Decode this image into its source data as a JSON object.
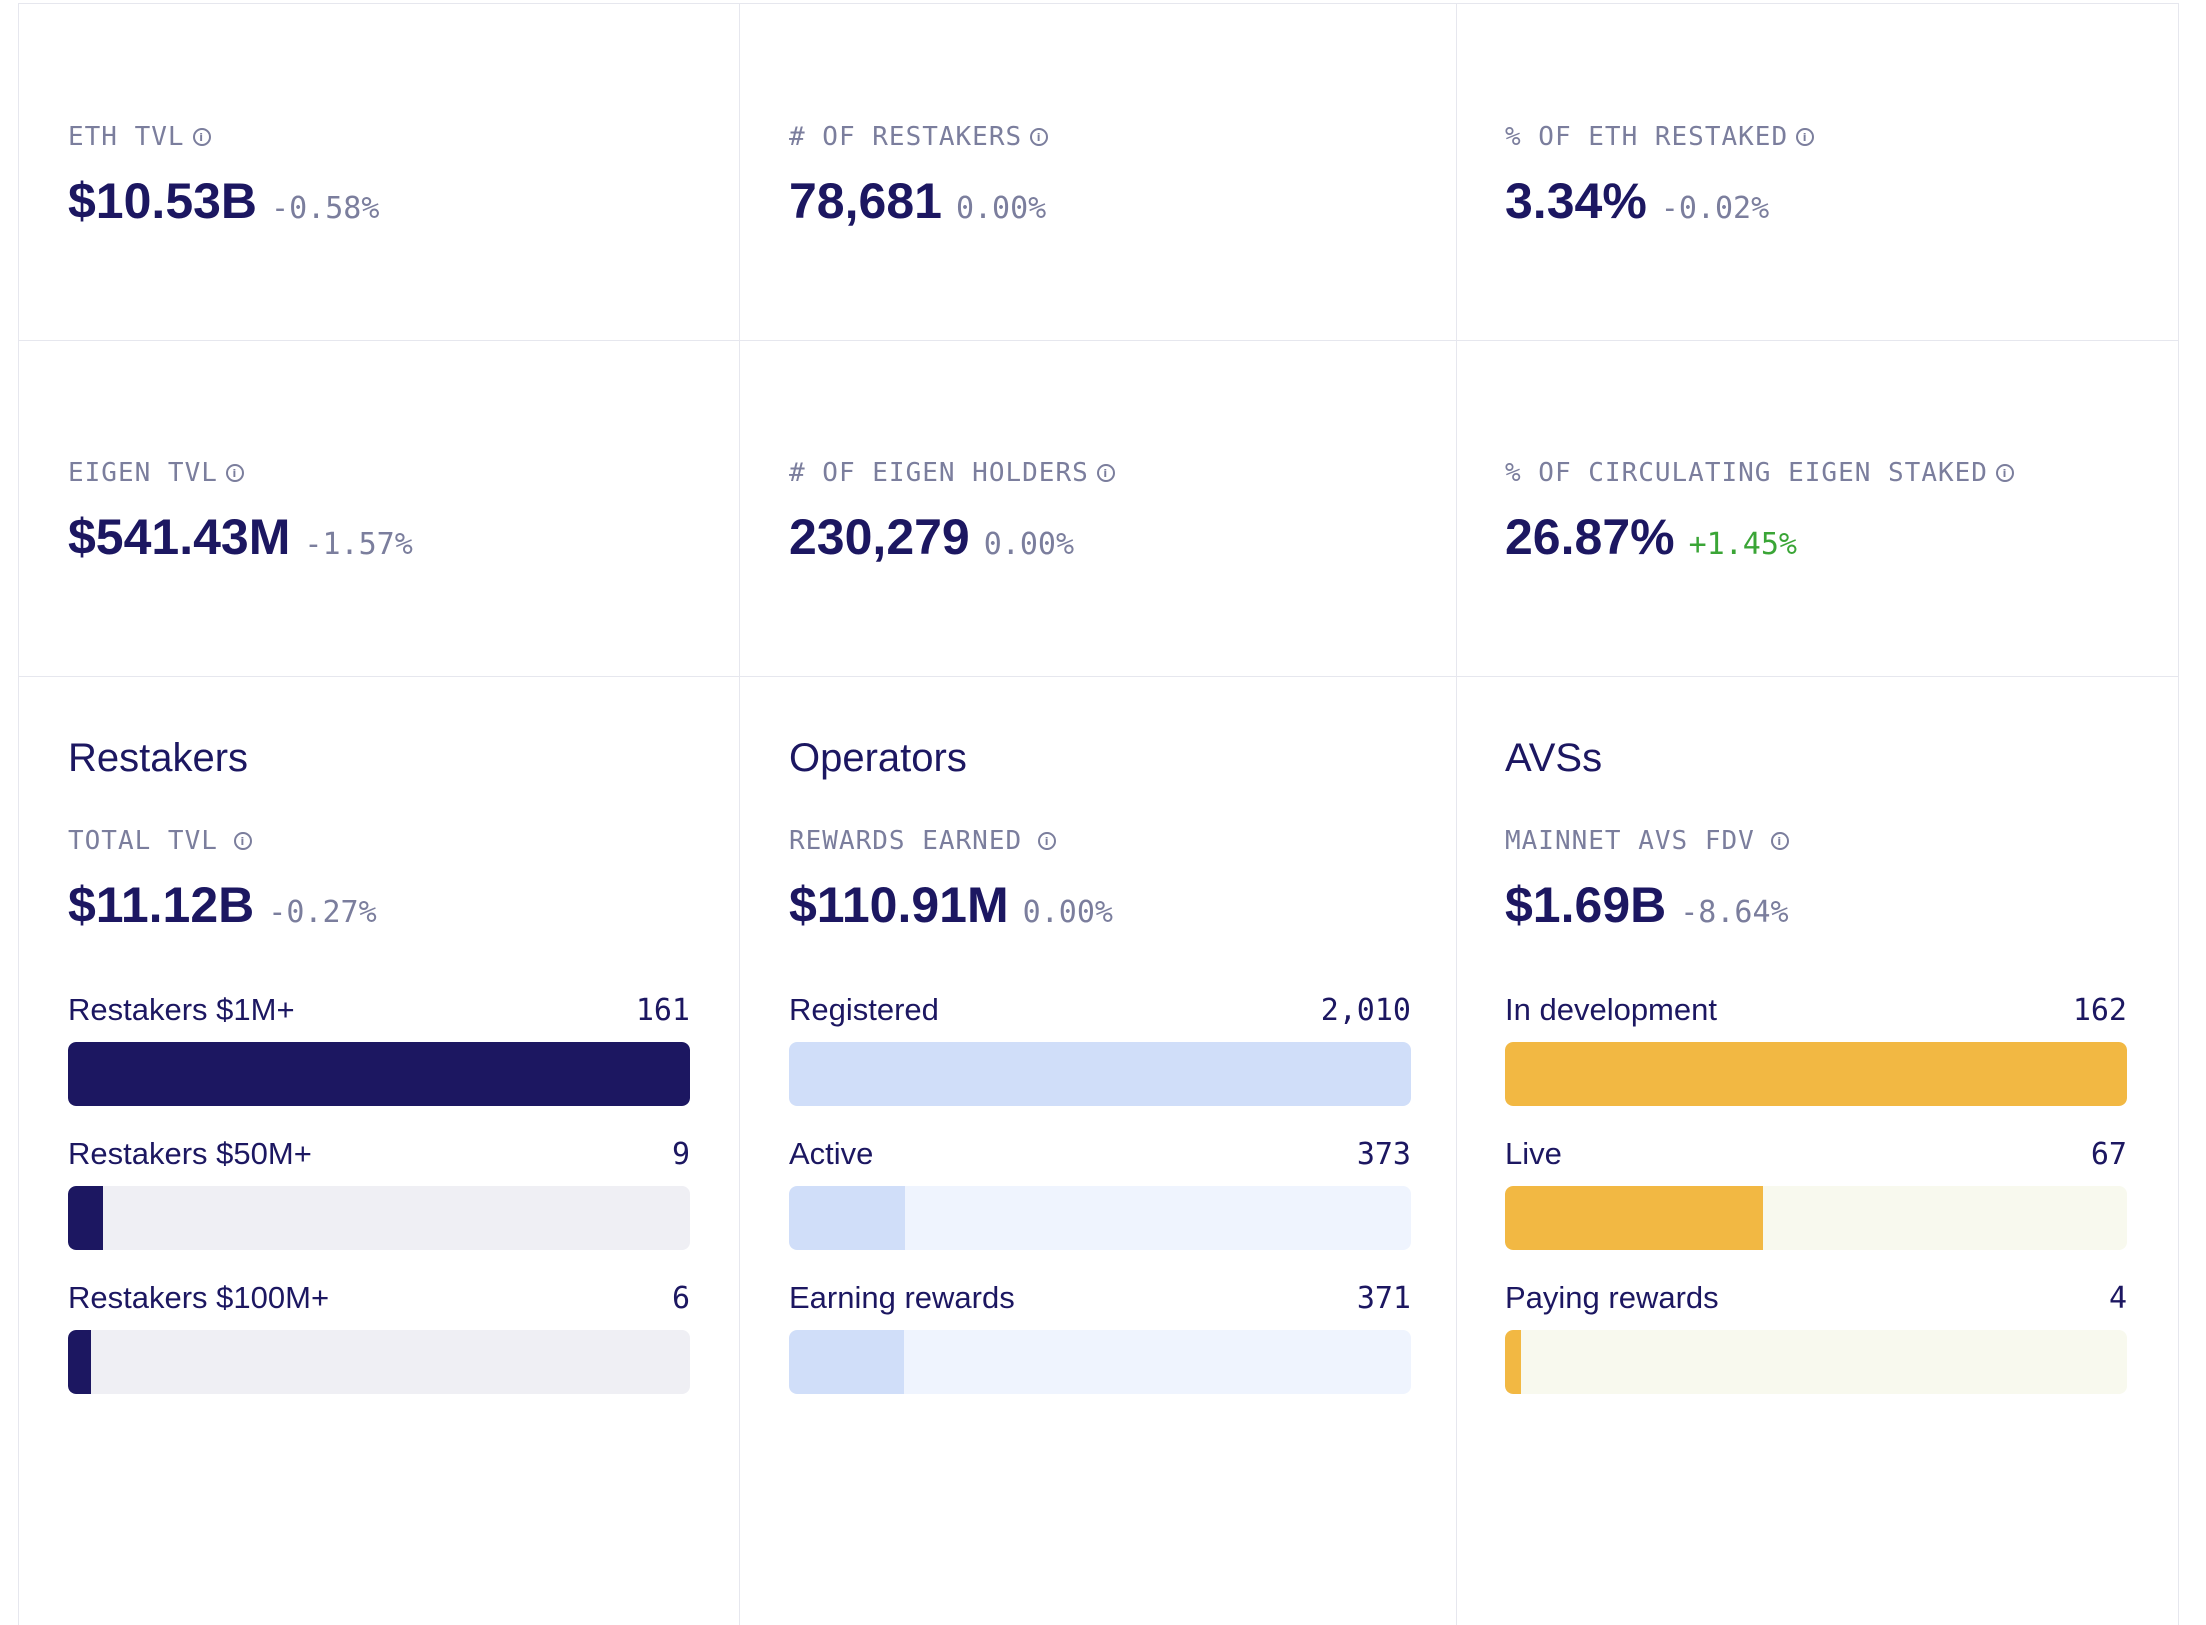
{
  "stats": [
    {
      "label": "ETH TVL",
      "value": "$10.53B",
      "delta": "-0.58%",
      "trend": "neutral"
    },
    {
      "label": "# OF RESTAKERS",
      "value": "78,681",
      "delta": "0.00%",
      "trend": "neutral"
    },
    {
      "label": "% OF ETH RESTAKED",
      "value": "3.34%",
      "delta": "-0.02%",
      "trend": "neutral"
    },
    {
      "label": "EIGEN TVL",
      "value": "$541.43M",
      "delta": "-1.57%",
      "trend": "neutral"
    },
    {
      "label": "# OF EIGEN HOLDERS",
      "value": "230,279",
      "delta": "0.00%",
      "trend": "neutral"
    },
    {
      "label": "% OF CIRCULATING EIGEN STAKED",
      "value": "26.87%",
      "delta": "+1.45%",
      "trend": "positive"
    }
  ],
  "sections": [
    {
      "title": "Restakers",
      "metric_label": "TOTAL TVL",
      "metric_value": "$11.12B",
      "metric_delta": "-0.27%",
      "bar_color": "#1c1761",
      "track_color": "#efeff4",
      "bars": [
        {
          "label": "Restakers $1M+",
          "count": "161",
          "fraction": 1.0
        },
        {
          "label": "Restakers $50M+",
          "count": "9",
          "fraction": 0.056
        },
        {
          "label": "Restakers $100M+",
          "count": "6",
          "fraction": 0.037
        }
      ]
    },
    {
      "title": "Operators",
      "metric_label": "REWARDS EARNED",
      "metric_value": "$110.91M",
      "metric_delta": "0.00%",
      "bar_color": "#d0def9",
      "track_color": "#eff4fe",
      "bars": [
        {
          "label": "Registered",
          "count": "2,010",
          "fraction": 1.0
        },
        {
          "label": "Active",
          "count": "373",
          "fraction": 0.186
        },
        {
          "label": "Earning rewards",
          "count": "371",
          "fraction": 0.185
        }
      ]
    },
    {
      "title": "AVSs",
      "metric_label": "MAINNET AVS FDV",
      "metric_value": "$1.69B",
      "metric_delta": "-8.64%",
      "bar_color": "#f2b843",
      "track_color": "#f8f9ee",
      "bars": [
        {
          "label": "In development",
          "count": "162",
          "fraction": 1.0
        },
        {
          "label": "Live",
          "count": "67",
          "fraction": 0.414
        },
        {
          "label": "Paying rewards",
          "count": "4",
          "fraction": 0.025
        }
      ]
    }
  ],
  "icons": {
    "info": "info-icon"
  }
}
